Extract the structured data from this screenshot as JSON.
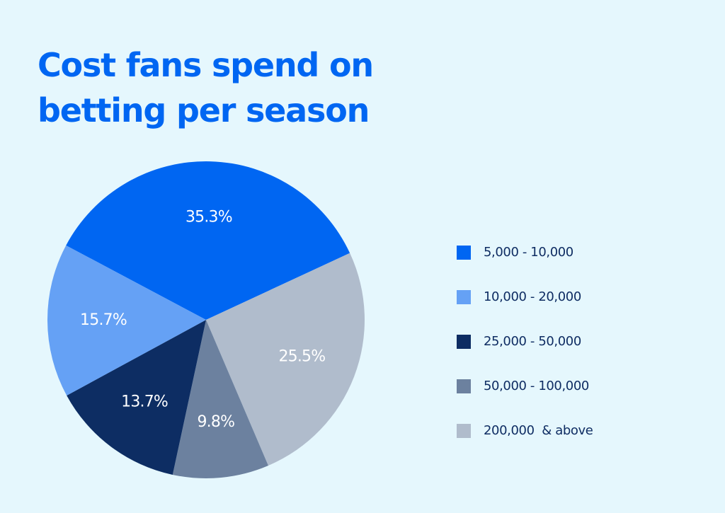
{
  "title": {
    "line1": "Cost fans spend on",
    "line2": "betting per season"
  },
  "colors": {
    "background": "#e5f7fd",
    "title": "#0066f2",
    "label_text": "#ffffff",
    "legend_text": "#0f2d63"
  },
  "chart_data": {
    "type": "pie",
    "title": "Cost fans spend on betting per season",
    "start_angle_deg": -152,
    "direction": "clockwise",
    "slices": [
      {
        "label": "5,000 - 10,000",
        "value": 35.3,
        "display": "35.3%",
        "color": "#0066f2"
      },
      {
        "label": "200,000  & above",
        "value": 25.5,
        "display": "25.5%",
        "color": "#b0bccc"
      },
      {
        "label": "50,000 - 100,000",
        "value": 9.8,
        "display": "9.8%",
        "color": "#6c819f"
      },
      {
        "label": "25,000 - 50,000",
        "value": 13.7,
        "display": "13.7%",
        "color": "#0d2d63"
      },
      {
        "label": "10,000 - 20,000",
        "value": 15.7,
        "display": "15.7%",
        "color": "#65a1f5"
      }
    ],
    "legend": {
      "placement": "right",
      "order": [
        "5,000 - 10,000",
        "10,000 - 20,000",
        "25,000 - 50,000",
        "50,000 - 100,000",
        "200,000  & above"
      ]
    }
  }
}
